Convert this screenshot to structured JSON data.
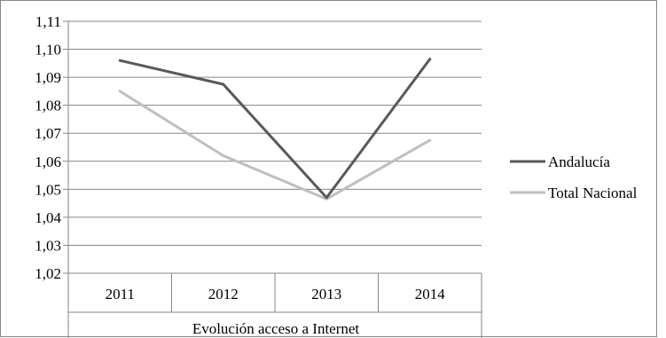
{
  "chart_data": {
    "type": "line",
    "categories": [
      "2011",
      "2012",
      "2013",
      "2014"
    ],
    "category_group_label": "Evolución  acceso a Internet",
    "series": [
      {
        "name": "Andalucía",
        "color": "#595959",
        "values": [
          1.096,
          1.0875,
          1.047,
          1.0965
        ]
      },
      {
        "name": "Total Nacional",
        "color": "#bfbfbf",
        "values": [
          1.085,
          1.062,
          1.0465,
          1.0675
        ]
      }
    ],
    "ylim": [
      1.02,
      1.11
    ],
    "ytick_step": 0.01,
    "ytick_labels": [
      "1,02",
      "1,03",
      "1,04",
      "1,05",
      "1,06",
      "1,07",
      "1,08",
      "1,09",
      "1,10",
      "1,11"
    ],
    "grid": true,
    "legend_position": "right",
    "xlabel": "",
    "ylabel": "",
    "title": ""
  }
}
